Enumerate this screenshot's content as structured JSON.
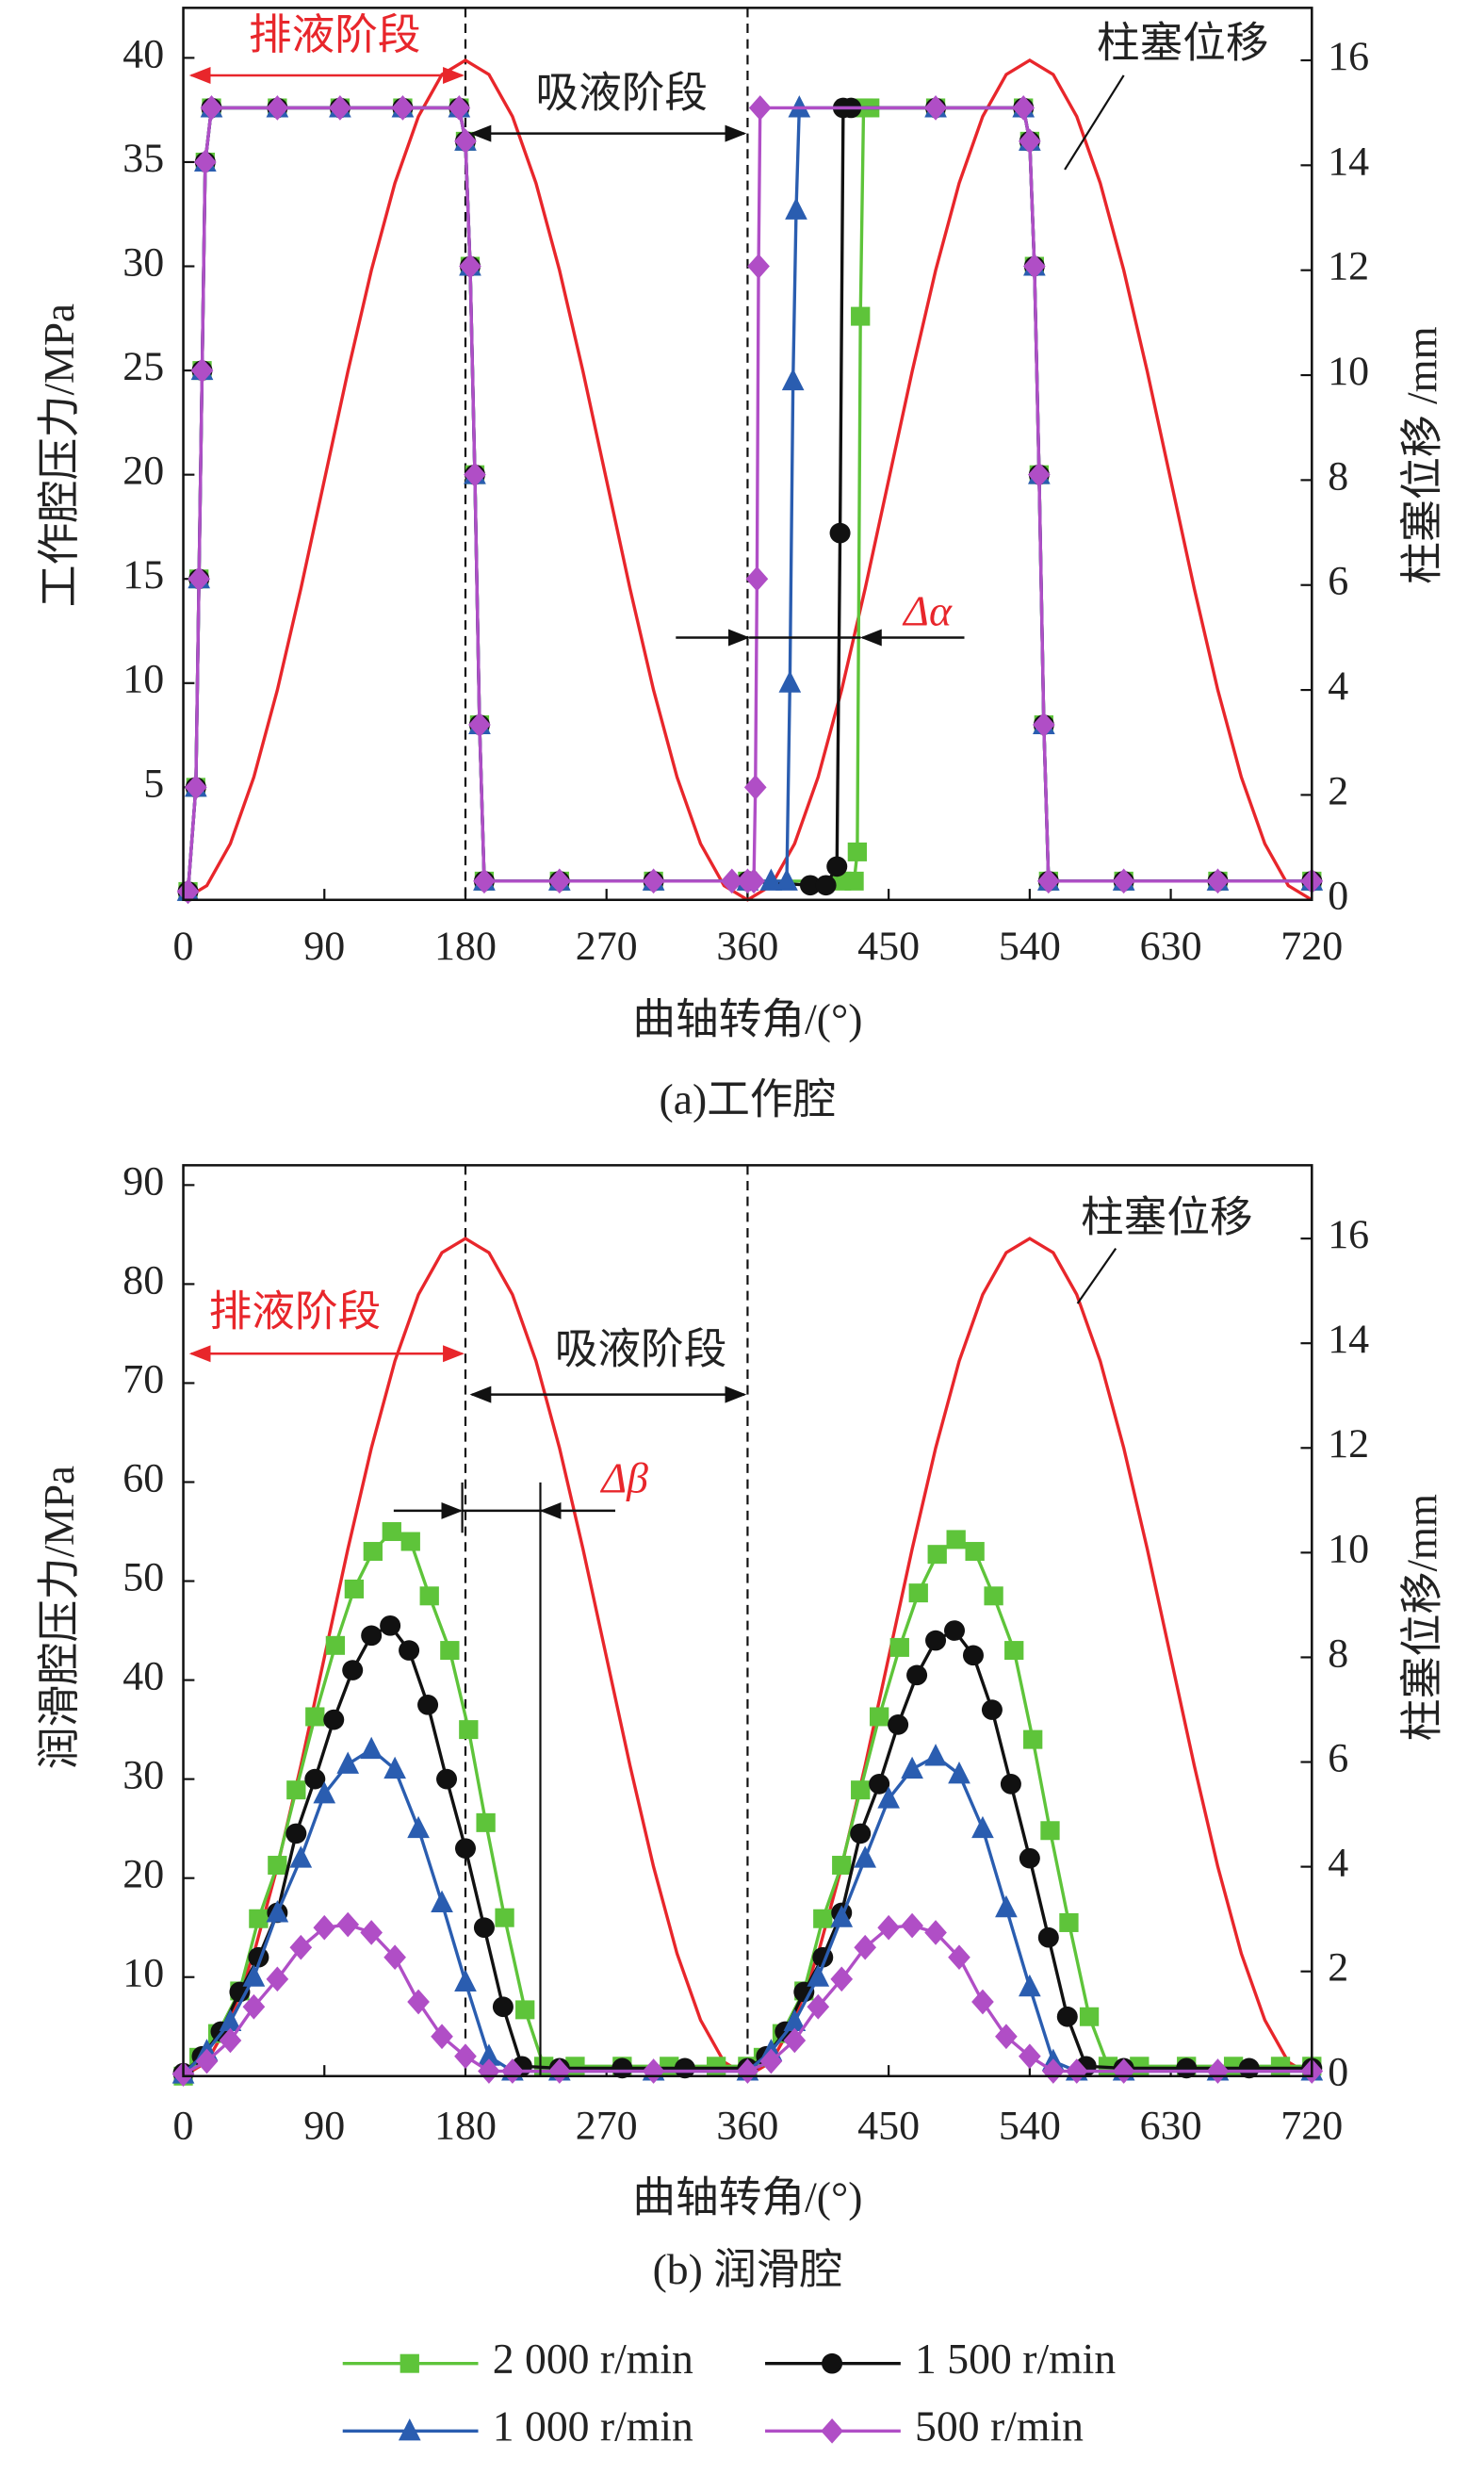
{
  "chart_data": [
    {
      "type": "line",
      "title": "(a)工作腔",
      "xlabel": "曲轴转角/(°)",
      "ylabel": "工作腔压力/MPa",
      "y2label": "柱塞位移 /mm",
      "xlim": [
        0,
        720
      ],
      "xticks": [
        0,
        90,
        180,
        270,
        360,
        450,
        540,
        630,
        720
      ],
      "ylim": [
        -0.4,
        42.4
      ],
      "yticks": [
        5,
        10,
        15,
        20,
        25,
        30,
        35,
        40
      ],
      "y2lim": [
        0,
        17
      ],
      "y2ticks": [
        0,
        2,
        4,
        6,
        8,
        10,
        12,
        14,
        16
      ],
      "annotations": [
        "排液阶段",
        "吸液阶段",
        "柱塞位移",
        "Δα"
      ],
      "series": [
        {
          "color": "#e8262b",
          "axis": "y2",
          "x": [
            0,
            15,
            30,
            45,
            60,
            75,
            90,
            105,
            120,
            135,
            150,
            165,
            180,
            195,
            210,
            225,
            240,
            255,
            270,
            285,
            300,
            315,
            330,
            345,
            360,
            375,
            390,
            405,
            420,
            435,
            450,
            465,
            480,
            495,
            510,
            525,
            540,
            555,
            570,
            585,
            600,
            615,
            630,
            645,
            660,
            675,
            690,
            705,
            720
          ],
          "values": [
            0,
            0.27,
            1.07,
            2.34,
            4,
            5.93,
            8,
            10.07,
            12,
            13.66,
            14.93,
            15.73,
            16,
            15.73,
            14.93,
            13.66,
            12,
            10.07,
            8,
            5.93,
            4,
            2.34,
            1.07,
            0.27,
            0,
            0.27,
            1.07,
            2.34,
            4,
            5.93,
            8,
            10.07,
            12,
            13.66,
            14.93,
            15.73,
            16,
            15.73,
            14.93,
            13.66,
            12,
            10.07,
            8,
            5.93,
            4,
            2.34,
            1.07,
            0.27,
            0
          ]
        },
        {
          "color": "#5ec43a",
          "marker": "square",
          "x": [
            3,
            8,
            10,
            12,
            14,
            18,
            60,
            100,
            140,
            176,
            180,
            183,
            186,
            189,
            192,
            240,
            300,
            360,
            420,
            428,
            430,
            432,
            434,
            438,
            480,
            536,
            540,
            543,
            546,
            549,
            552,
            600,
            660,
            720
          ],
          "values": [
            0,
            5,
            15,
            25,
            35,
            37.6,
            37.6,
            37.6,
            37.6,
            37.6,
            36,
            30,
            20,
            8,
            0.5,
            0.5,
            0.5,
            0.5,
            0.5,
            0.5,
            1.9,
            27.6,
            37.6,
            37.6,
            37.6,
            37.6,
            36,
            30,
            20,
            8,
            0.5,
            0.5,
            0.5,
            0.5
          ]
        },
        {
          "color": "#111111",
          "marker": "circle",
          "x": [
            3,
            8,
            10,
            12,
            14,
            18,
            60,
            100,
            140,
            176,
            180,
            183,
            186,
            189,
            192,
            240,
            300,
            360,
            400,
            410,
            417,
            419,
            421,
            426,
            480,
            536,
            540,
            543,
            546,
            549,
            552,
            600,
            660,
            720
          ],
          "values": [
            0,
            5,
            15,
            25,
            35,
            37.6,
            37.6,
            37.6,
            37.6,
            37.6,
            36,
            30,
            20,
            8,
            0.5,
            0.5,
            0.5,
            0.5,
            0.3,
            0.3,
            1.2,
            17.2,
            37.6,
            37.6,
            37.6,
            37.6,
            36,
            30,
            20,
            8,
            0.5,
            0.5,
            0.5,
            0.5
          ]
        },
        {
          "color": "#2a5db0",
          "marker": "triangle",
          "x": [
            3,
            8,
            10,
            12,
            14,
            18,
            60,
            100,
            140,
            176,
            180,
            183,
            186,
            189,
            192,
            240,
            300,
            360,
            375,
            385,
            387,
            389,
            391,
            393,
            480,
            536,
            540,
            543,
            546,
            549,
            552,
            600,
            660,
            720
          ],
          "values": [
            0,
            5,
            15,
            25,
            35,
            37.6,
            37.6,
            37.6,
            37.6,
            37.6,
            36,
            30,
            20,
            8,
            0.5,
            0.5,
            0.5,
            0.5,
            0.5,
            0.5,
            10,
            24.5,
            32.7,
            37.6,
            37.6,
            37.6,
            36,
            30,
            20,
            8,
            0.5,
            0.5,
            0.5,
            0.5
          ]
        },
        {
          "color": "#b04ec6",
          "marker": "diamond",
          "x": [
            3,
            8,
            10,
            12,
            14,
            18,
            60,
            100,
            140,
            176,
            180,
            183,
            186,
            189,
            192,
            240,
            300,
            350,
            360,
            364,
            365,
            366,
            367,
            368,
            480,
            536,
            540,
            543,
            546,
            549,
            552,
            600,
            660,
            720
          ],
          "values": [
            0,
            5,
            15,
            25,
            35,
            37.6,
            37.6,
            37.6,
            37.6,
            37.6,
            36,
            30,
            20,
            8,
            0.5,
            0.5,
            0.5,
            0.5,
            0.5,
            0.5,
            5,
            15,
            30,
            37.6,
            37.6,
            37.6,
            36,
            30,
            20,
            8,
            0.5,
            0.5,
            0.5,
            0.5
          ]
        }
      ]
    },
    {
      "type": "line",
      "title": "(b) 润滑腔",
      "xlabel": "曲轴转角/(°)",
      "ylabel": "润滑腔压力/MPa",
      "y2label": "柱塞位移/mm",
      "xlim": [
        0,
        720
      ],
      "xticks": [
        0,
        90,
        180,
        270,
        360,
        450,
        540,
        630,
        720
      ],
      "ylim": [
        0,
        92
      ],
      "yticks": [
        10,
        20,
        30,
        40,
        50,
        60,
        70,
        80,
        90
      ],
      "y2lim": [
        0,
        17.4
      ],
      "y2ticks": [
        0,
        2,
        4,
        6,
        8,
        10,
        12,
        14,
        16
      ],
      "annotations": [
        "排液阶段",
        "吸液阶段",
        "柱塞位移",
        "Δβ"
      ],
      "series": [
        {
          "color": "#e8262b",
          "axis": "y2",
          "x": [
            0,
            15,
            30,
            45,
            60,
            75,
            90,
            105,
            120,
            135,
            150,
            165,
            180,
            195,
            210,
            225,
            240,
            255,
            270,
            285,
            300,
            315,
            330,
            345,
            360,
            375,
            390,
            405,
            420,
            435,
            450,
            465,
            480,
            495,
            510,
            525,
            540,
            555,
            570,
            585,
            600,
            615,
            630,
            645,
            660,
            675,
            690,
            705,
            720
          ],
          "values": [
            0,
            0.27,
            1.07,
            2.34,
            4,
            5.93,
            8,
            10.07,
            12,
            13.66,
            14.93,
            15.73,
            16,
            15.73,
            14.93,
            13.66,
            12,
            10.07,
            8,
            5.93,
            4,
            2.34,
            1.07,
            0.27,
            0,
            0.27,
            1.07,
            2.34,
            4,
            5.93,
            8,
            10.07,
            12,
            13.66,
            14.93,
            15.73,
            16,
            15.73,
            14.93,
            13.66,
            12,
            10.07,
            8,
            5.93,
            4,
            2.34,
            1.07,
            0.27,
            0
          ]
        },
        {
          "name": "2 000 r/min",
          "color": "#5ec43a",
          "marker": "square",
          "x": [
            0,
            10,
            22,
            36,
            48,
            60,
            72,
            84,
            97,
            109,
            121,
            133,
            145,
            157,
            170,
            182,
            193,
            205,
            218,
            230,
            250,
            280,
            310,
            340,
            360,
            370,
            382,
            396,
            408,
            420,
            432,
            444,
            457,
            469,
            481,
            493,
            505,
            517,
            530,
            542,
            553,
            565,
            578,
            590,
            610,
            640,
            670,
            700,
            720
          ],
          "values": [
            0,
            1.9,
            4.3,
            8.6,
            15.9,
            21.3,
            28.9,
            36.3,
            43.5,
            49.2,
            53,
            55,
            54,
            48.5,
            43,
            35,
            25.6,
            16,
            6.7,
            1,
            1,
            1,
            1,
            1,
            1,
            1.9,
            4.3,
            8.6,
            15.9,
            21.3,
            28.9,
            36.3,
            43.3,
            48.8,
            52.7,
            54.2,
            53,
            48.5,
            43,
            34,
            24.8,
            15.5,
            6,
            1,
            1,
            1,
            1,
            1,
            1
          ]
        },
        {
          "name": "1 500 r/min",
          "color": "#111111",
          "marker": "circle",
          "x": [
            0,
            12,
            24,
            36,
            48,
            60,
            72,
            84,
            96,
            108,
            120,
            132,
            144,
            156,
            168,
            180,
            192,
            204,
            216,
            240,
            280,
            320,
            360,
            372,
            384,
            396,
            408,
            420,
            432,
            444,
            456,
            468,
            480,
            492,
            504,
            516,
            528,
            540,
            552,
            564,
            576,
            600,
            640,
            680,
            720
          ],
          "values": [
            0.3,
            2,
            4.5,
            8.5,
            12,
            16.5,
            24.5,
            30,
            36,
            41,
            44.5,
            45.5,
            43,
            37.5,
            30,
            23,
            15,
            7,
            1,
            0.8,
            0.8,
            0.8,
            0.8,
            2,
            4.5,
            8.5,
            12,
            16.5,
            24.5,
            29.5,
            35.5,
            40.5,
            44,
            45,
            42.5,
            37,
            29.5,
            22,
            14,
            6,
            1,
            0.8,
            0.8,
            0.8,
            0.8
          ]
        },
        {
          "name": "1 000 r/min",
          "color": "#2a5db0",
          "marker": "triangle",
          "x": [
            0,
            15,
            30,
            45,
            60,
            75,
            90,
            105,
            120,
            135,
            150,
            165,
            180,
            195,
            210,
            240,
            300,
            360,
            375,
            390,
            405,
            420,
            435,
            450,
            465,
            480,
            495,
            510,
            525,
            540,
            555,
            570,
            600,
            660,
            720
          ],
          "values": [
            0.2,
            2.5,
            5.5,
            10,
            16.5,
            22,
            28.5,
            31.5,
            33,
            31,
            25,
            17.5,
            9.5,
            2,
            0.5,
            0.5,
            0.5,
            0.5,
            2.5,
            5.5,
            10,
            16,
            22,
            28,
            31,
            32.3,
            30.5,
            25,
            17,
            9,
            1.5,
            0.5,
            0.5,
            0.5,
            0.5
          ]
        },
        {
          "name": "500 r/min",
          "color": "#b04ec6",
          "marker": "diamond",
          "x": [
            0,
            15,
            30,
            45,
            60,
            75,
            90,
            105,
            120,
            135,
            150,
            165,
            180,
            195,
            210,
            240,
            300,
            360,
            375,
            390,
            405,
            420,
            435,
            450,
            465,
            480,
            495,
            510,
            525,
            540,
            555,
            570,
            600,
            660,
            720
          ],
          "values": [
            0.2,
            1.5,
            3.6,
            7,
            9.8,
            13,
            15,
            15.3,
            14.5,
            12,
            7.5,
            4,
            2,
            0.5,
            0.5,
            0.5,
            0.5,
            0.5,
            1.5,
            3.6,
            7,
            9.8,
            13,
            15,
            15.2,
            14.5,
            12,
            7.5,
            4,
            2,
            0.5,
            0.5,
            0.5,
            0.5,
            0.5
          ]
        }
      ]
    }
  ]
}
